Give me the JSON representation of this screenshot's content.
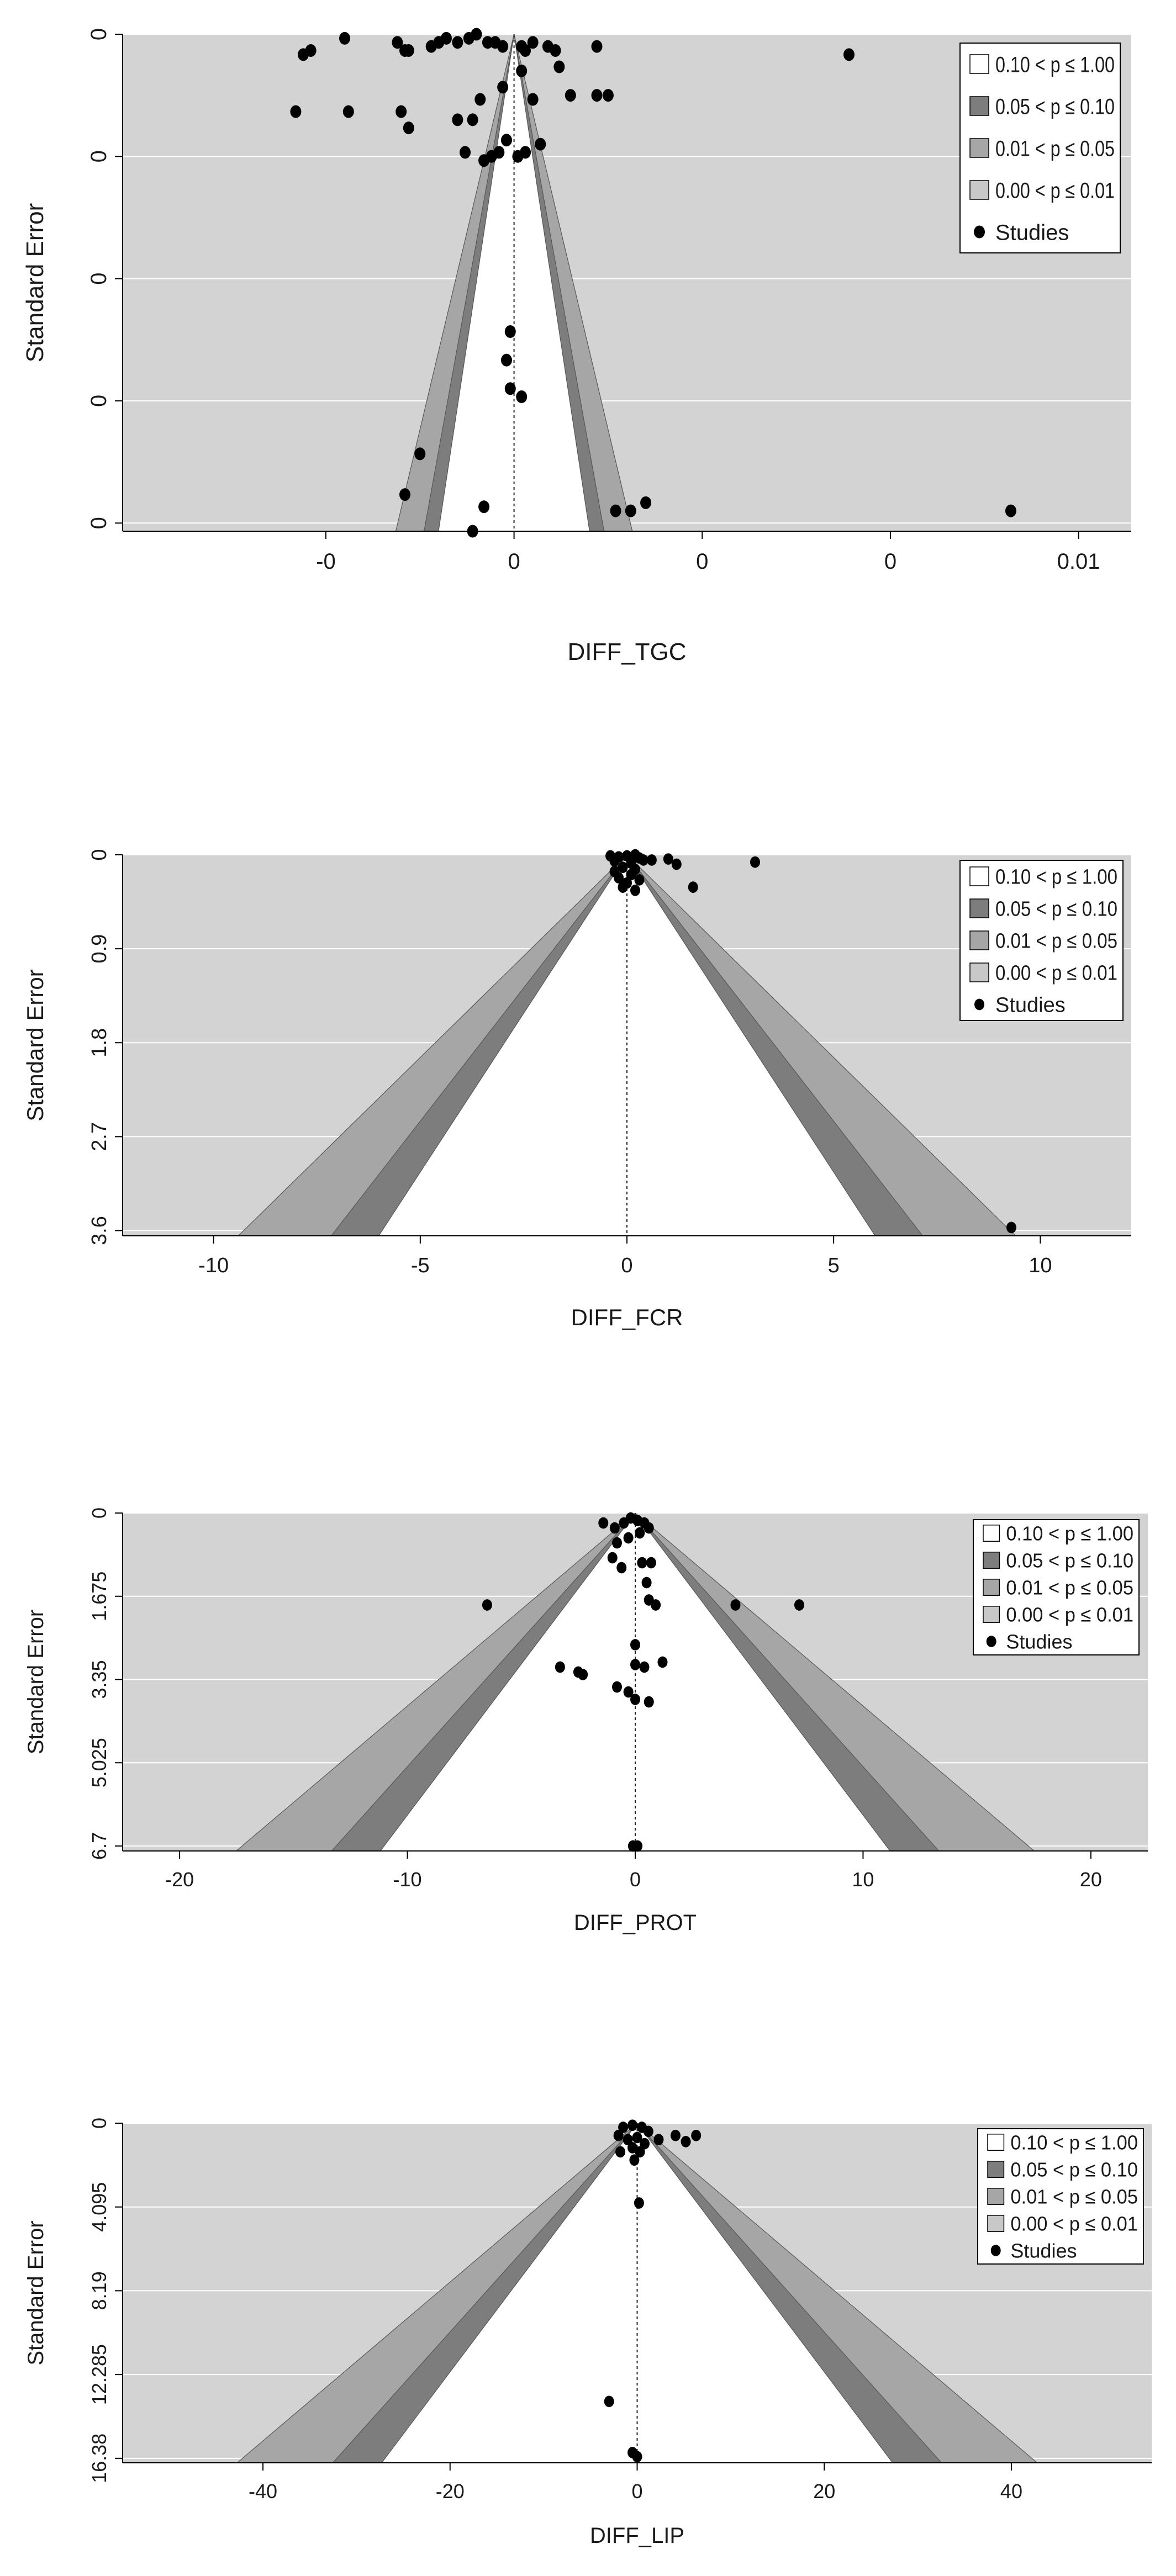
{
  "legend": {
    "bands": [
      {
        "label": "0.10 < p ≤ 1.00",
        "color": "#ffffff"
      },
      {
        "label": "0.05 < p ≤ 0.10",
        "color": "#7d7d7d"
      },
      {
        "label": "0.01 < p ≤ 0.05",
        "color": "#a6a6a6"
      },
      {
        "label": "0.00 < p ≤ 0.01",
        "color": "#c8c8c8"
      }
    ],
    "studies_label": "Studies"
  },
  "colors": {
    "plot_background": "#d3d3d3",
    "grid": "#ffffff",
    "points": "#000000"
  },
  "chart_data": [
    {
      "type": "scatter",
      "subtype": "contour-enhanced funnel plot",
      "xlabel": "DIFF_TGC",
      "ylabel": "Standard Error",
      "xlim": [
        -0.0104,
        0.0164
      ],
      "ylim": [
        0.00122,
        0
      ],
      "center": 0,
      "yticks": [
        0,
        0.0003,
        0.0006,
        0.0009,
        0.0012
      ],
      "ytick_labels": [
        "0",
        "0",
        "0",
        "0",
        "0"
      ],
      "xticks": [
        -0.005,
        0,
        0.005,
        0.01,
        0.015
      ],
      "xtick_labels": [
        "-0",
        "0",
        "0",
        "0",
        "0.01"
      ],
      "legend_position": "top-right",
      "grid": true,
      "points": [
        [
          -0.0056,
          5e-05
        ],
        [
          -0.0054,
          4e-05
        ],
        [
          -0.0045,
          1e-05
        ],
        [
          -0.0031,
          2e-05
        ],
        [
          -0.0029,
          4e-05
        ],
        [
          -0.0028,
          4e-05
        ],
        [
          -0.0022,
          3e-05
        ],
        [
          -0.002,
          2e-05
        ],
        [
          -0.0018,
          1e-05
        ],
        [
          -0.0015,
          2e-05
        ],
        [
          -0.0012,
          1e-05
        ],
        [
          -0.001,
          0.0
        ],
        [
          -0.0007,
          2e-05
        ],
        [
          -0.0005,
          2e-05
        ],
        [
          -0.0003,
          3e-05
        ],
        [
          0.0002,
          3e-05
        ],
        [
          0.0003,
          4e-05
        ],
        [
          0.0005,
          2e-05
        ],
        [
          0.0009,
          3e-05
        ],
        [
          0.0011,
          4e-05
        ],
        [
          0.0022,
          3e-05
        ],
        [
          0.0089,
          5e-05
        ],
        [
          -0.0058,
          0.00019
        ],
        [
          -0.0044,
          0.00019
        ],
        [
          -0.003,
          0.00019
        ],
        [
          -0.0028,
          0.00023
        ],
        [
          -0.0015,
          0.00021
        ],
        [
          -0.0011,
          0.00021
        ],
        [
          -0.0009,
          0.00016
        ],
        [
          -0.0003,
          0.00013
        ],
        [
          0.0002,
          9e-05
        ],
        [
          0.0005,
          0.00016
        ],
        [
          0.0012,
          8e-05
        ],
        [
          0.0015,
          0.00015
        ],
        [
          0.0022,
          0.00015
        ],
        [
          0.0025,
          0.00015
        ],
        [
          -0.0013,
          0.00029
        ],
        [
          -0.0008,
          0.00031
        ],
        [
          -0.0006,
          0.0003
        ],
        [
          -0.0004,
          0.00029
        ],
        [
          -0.0002,
          0.00026
        ],
        [
          0.0001,
          0.0003
        ],
        [
          0.0003,
          0.00029
        ],
        [
          0.0007,
          0.00027
        ],
        [
          -0.0001,
          0.00073
        ],
        [
          -0.0002,
          0.0008
        ],
        [
          -0.0001,
          0.00087
        ],
        [
          0.0002,
          0.00089
        ],
        [
          -0.0025,
          0.00103
        ],
        [
          -0.0029,
          0.00113
        ],
        [
          -0.0008,
          0.00116
        ],
        [
          -0.0011,
          0.00122
        ],
        [
          0.0027,
          0.00117
        ],
        [
          0.0031,
          0.00117
        ],
        [
          0.0035,
          0.00115
        ],
        [
          0.0132,
          0.00117
        ]
      ]
    },
    {
      "type": "scatter",
      "subtype": "contour-enhanced funnel plot",
      "xlabel": "DIFF_FCR",
      "ylabel": "Standard Error",
      "xlim": [
        -12.2,
        12.2
      ],
      "ylim": [
        3.65,
        0
      ],
      "center": 0,
      "yticks": [
        0,
        0.9,
        1.8,
        2.7,
        3.6
      ],
      "ytick_labels": [
        "0",
        "0.9",
        "1.8",
        "2.7",
        "3.6"
      ],
      "xticks": [
        -10,
        -5,
        0,
        5,
        10
      ],
      "xtick_labels": [
        "-10",
        "-5",
        "0",
        "5",
        "10"
      ],
      "legend_position": "top-right",
      "grid": true,
      "points": [
        [
          -0.4,
          0.01
        ],
        [
          -0.2,
          0.02
        ],
        [
          0.0,
          0.01
        ],
        [
          0.2,
          0.0
        ],
        [
          0.3,
          0.03
        ],
        [
          -0.3,
          0.06
        ],
        [
          0.1,
          0.08
        ],
        [
          0.4,
          0.05
        ],
        [
          -0.1,
          0.12
        ],
        [
          0.2,
          0.14
        ],
        [
          -0.3,
          0.16
        ],
        [
          0.1,
          0.19
        ],
        [
          -0.2,
          0.22
        ],
        [
          0.3,
          0.24
        ],
        [
          0.0,
          0.27
        ],
        [
          -0.1,
          0.31
        ],
        [
          0.2,
          0.34
        ],
        [
          0.6,
          0.05
        ],
        [
          1.0,
          0.04
        ],
        [
          1.2,
          0.09
        ],
        [
          1.6,
          0.31
        ],
        [
          3.1,
          0.07
        ],
        [
          9.3,
          3.57
        ]
      ]
    },
    {
      "type": "scatter",
      "subtype": "contour-enhanced funnel plot",
      "xlabel": "DIFF_PROT",
      "ylabel": "Standard Error",
      "xlim": [
        -22.5,
        22.5
      ],
      "ylim": [
        6.8,
        0
      ],
      "center": 0,
      "yticks": [
        0,
        1.675,
        3.35,
        5.025,
        6.7
      ],
      "ytick_labels": [
        "0",
        "1.675",
        "3.35",
        "5.025",
        "6.7"
      ],
      "xticks": [
        -20,
        -10,
        0,
        10,
        20
      ],
      "xtick_labels": [
        "-20",
        "-10",
        "0",
        "10",
        "20"
      ],
      "legend_position": "top-right",
      "grid": true,
      "points": [
        [
          -1.4,
          0.2
        ],
        [
          -0.9,
          0.3
        ],
        [
          -0.5,
          0.2
        ],
        [
          -0.2,
          0.1
        ],
        [
          0.1,
          0.15
        ],
        [
          0.4,
          0.2
        ],
        [
          0.6,
          0.3
        ],
        [
          -0.8,
          0.6
        ],
        [
          -0.3,
          0.5
        ],
        [
          0.2,
          0.4
        ],
        [
          -1.0,
          0.9
        ],
        [
          -0.6,
          1.1
        ],
        [
          0.3,
          1.0
        ],
        [
          0.7,
          1.0
        ],
        [
          0.5,
          1.4
        ],
        [
          0.6,
          1.75
        ],
        [
          0.9,
          1.85
        ],
        [
          -6.5,
          1.85
        ],
        [
          4.4,
          1.85
        ],
        [
          7.2,
          1.85
        ],
        [
          0.0,
          2.65
        ],
        [
          -3.3,
          3.1
        ],
        [
          -2.5,
          3.2
        ],
        [
          -2.3,
          3.25
        ],
        [
          0.0,
          3.05
        ],
        [
          0.4,
          3.1
        ],
        [
          1.2,
          3.0
        ],
        [
          -0.8,
          3.5
        ],
        [
          -0.3,
          3.6
        ],
        [
          0.0,
          3.75
        ],
        [
          0.6,
          3.8
        ],
        [
          -0.1,
          6.7
        ],
        [
          0.1,
          6.7
        ]
      ]
    },
    {
      "type": "scatter",
      "subtype": "contour-enhanced funnel plot",
      "xlabel": "DIFF_LIP",
      "ylabel": "Standard Error",
      "xlim": [
        -55,
        55
      ],
      "ylim": [
        16.6,
        0
      ],
      "center": 0,
      "yticks": [
        0,
        4.095,
        8.19,
        12.285,
        16.38
      ],
      "ytick_labels": [
        "0",
        "4.095",
        "8.19",
        "12.285",
        "16.38"
      ],
      "xticks": [
        -40,
        -20,
        0,
        20,
        40
      ],
      "xtick_labels": [
        "-40",
        "-20",
        "0",
        "20",
        "40"
      ],
      "legend_position": "top-right",
      "grid": true,
      "points": [
        [
          -1.5,
          0.2
        ],
        [
          -0.5,
          0.1
        ],
        [
          0.5,
          0.2
        ],
        [
          1.2,
          0.4
        ],
        [
          -2.0,
          0.6
        ],
        [
          -1.0,
          0.8
        ],
        [
          0.0,
          0.7
        ],
        [
          0.8,
          1.0
        ],
        [
          -0.5,
          1.2
        ],
        [
          0.3,
          1.4
        ],
        [
          -1.8,
          1.4
        ],
        [
          2.3,
          0.8
        ],
        [
          4.1,
          0.6
        ],
        [
          5.2,
          0.9
        ],
        [
          6.3,
          0.6
        ],
        [
          -0.3,
          1.8
        ],
        [
          0.2,
          3.9
        ],
        [
          -3.0,
          13.6
        ],
        [
          -0.5,
          16.1
        ],
        [
          0.0,
          16.3
        ]
      ]
    }
  ]
}
